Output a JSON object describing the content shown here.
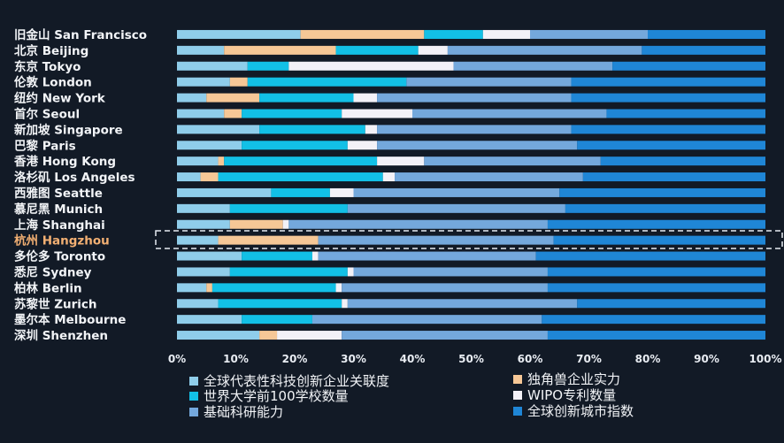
{
  "chart_data": {
    "type": "bar",
    "orientation": "horizontal",
    "stacked": true,
    "normalized": true,
    "highlighted_category": "杭州 Hangzhou",
    "categories": [
      "旧金山 San Francisco",
      "北京 Beijing",
      "东京 Tokyo",
      "伦敦 London",
      "纽约 New York",
      "首尔 Seoul",
      "新加坡 Singapore",
      "巴黎 Paris",
      "香港 Hong Kong",
      "洛杉矶 Los Angeles",
      "西雅图 Seattle",
      "慕尼黑 Munich",
      "上海 Shanghai",
      "杭州 Hangzhou",
      "多伦多 Toronto",
      "悉尼 Sydney",
      "柏林 Berlin",
      "苏黎世 Zurich",
      "墨尔本 Melbourne",
      "深圳 Shenzhen"
    ],
    "series": [
      {
        "name": "全球代表性科技创新企业关联度",
        "color": "#8fcdea",
        "values": [
          21,
          8,
          12,
          9,
          5,
          8,
          14,
          11,
          7,
          4,
          16,
          9,
          9,
          7,
          11,
          9,
          5,
          7,
          11,
          14
        ]
      },
      {
        "name": "独角兽企业实力",
        "color": "#f6c796",
        "values": [
          21,
          19,
          0,
          3,
          9,
          3,
          0,
          0,
          1,
          3,
          0,
          0,
          9,
          17,
          0,
          0,
          1,
          0,
          0,
          3
        ]
      },
      {
        "name": "世界大学前100学校数量",
        "color": "#12c0e6",
        "values": [
          10,
          14,
          7,
          27,
          16,
          17,
          18,
          18,
          26,
          28,
          10,
          20,
          0,
          0,
          12,
          20,
          21,
          21,
          12,
          0
        ]
      },
      {
        "name": "WIPO专利数量",
        "color": "#f3f1f7",
        "values": [
          8,
          5,
          28,
          0,
          4,
          12,
          2,
          5,
          8,
          2,
          4,
          0,
          1,
          0,
          1,
          1,
          1,
          1,
          0,
          11
        ]
      },
      {
        "name": "基础科研能力",
        "color": "#74a8dc",
        "values": [
          20,
          33,
          27,
          28,
          33,
          33,
          33,
          34,
          30,
          32,
          35,
          37,
          44,
          40,
          37,
          33,
          35,
          39,
          39,
          35
        ]
      },
      {
        "name": "全球创新城市指数",
        "color": "#1f86d6",
        "values": [
          20,
          21,
          26,
          33,
          33,
          27,
          33,
          32,
          28,
          31,
          35,
          34,
          37,
          36,
          39,
          37,
          37,
          32,
          38,
          37
        ]
      }
    ],
    "xlabel": "",
    "ylabel": "",
    "x_ticks": [
      "0%",
      "10%",
      "20%",
      "30%",
      "40%",
      "50%",
      "60%",
      "70%",
      "80%",
      "90%",
      "100%"
    ],
    "xlim": [
      0,
      100
    ],
    "grid": false,
    "legend_placement": "bottom"
  }
}
